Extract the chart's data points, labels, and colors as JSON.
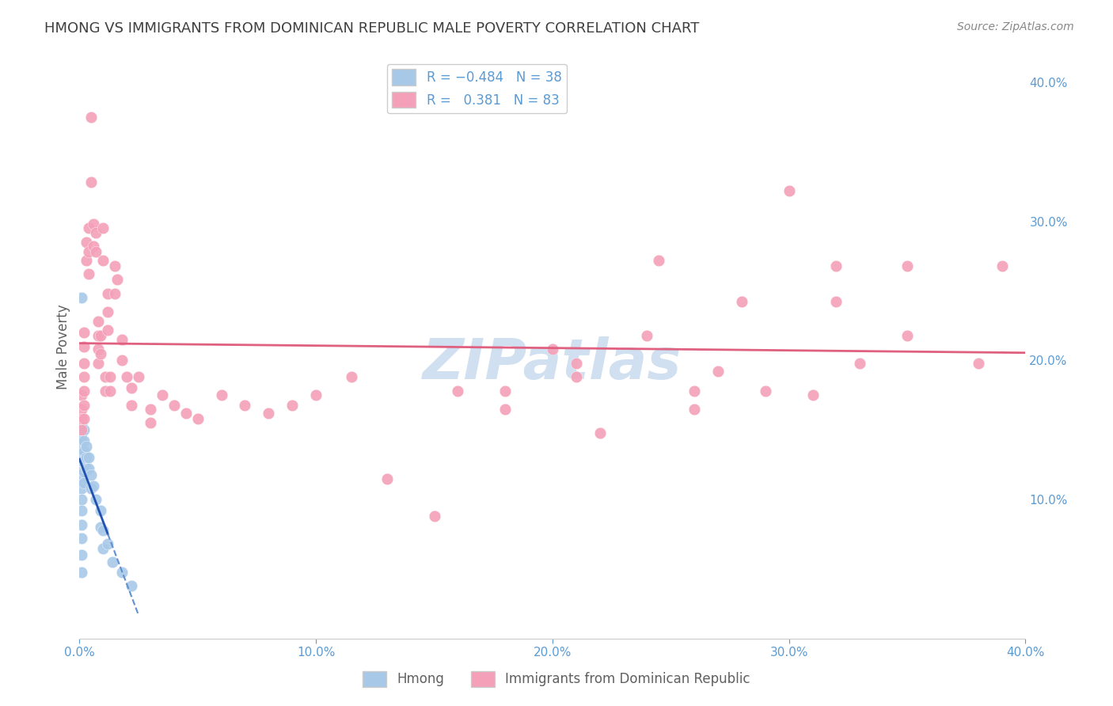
{
  "title": "HMONG VS IMMIGRANTS FROM DOMINICAN REPUBLIC MALE POVERTY CORRELATION CHART",
  "source": "Source: ZipAtlas.com",
  "ylabel": "Male Poverty",
  "xlim": [
    0.0,
    0.4
  ],
  "ylim": [
    0.0,
    0.42
  ],
  "x_ticks": [
    0.0,
    0.1,
    0.2,
    0.3,
    0.4
  ],
  "y_ticks_right": [
    0.1,
    0.2,
    0.3,
    0.4
  ],
  "x_tick_labels": [
    "0.0%",
    "10.0%",
    "20.0%",
    "30.0%",
    "40.0%"
  ],
  "y_tick_labels_right": [
    "10.0%",
    "20.0%",
    "30.0%",
    "40.0%"
  ],
  "legend_labels": [
    "Hmong",
    "Immigrants from Dominican Republic"
  ],
  "hmong_color": "#a8c8e8",
  "dr_color": "#f4a0b8",
  "hmong_R": -0.484,
  "hmong_N": 38,
  "dr_R": 0.381,
  "dr_N": 83,
  "hmong_line_color": "#2050b0",
  "hmong_line_dash_color": "#6090d0",
  "dr_line_color": "#e06080",
  "watermark": "ZIPatlas",
  "watermark_color": "#d0e0f0",
  "background_color": "#ffffff",
  "grid_color": "#d8d8d8",
  "title_color": "#404040",
  "axis_label_color": "#5b9bd5",
  "hmong_points": [
    [
      0.001,
      0.245
    ],
    [
      0.001,
      0.155
    ],
    [
      0.001,
      0.148
    ],
    [
      0.001,
      0.142
    ],
    [
      0.001,
      0.135
    ],
    [
      0.001,
      0.128
    ],
    [
      0.001,
      0.12
    ],
    [
      0.001,
      0.114
    ],
    [
      0.001,
      0.108
    ],
    [
      0.001,
      0.1
    ],
    [
      0.001,
      0.092
    ],
    [
      0.001,
      0.082
    ],
    [
      0.001,
      0.072
    ],
    [
      0.001,
      0.06
    ],
    [
      0.001,
      0.048
    ],
    [
      0.002,
      0.15
    ],
    [
      0.002,
      0.142
    ],
    [
      0.002,
      0.135
    ],
    [
      0.002,
      0.128
    ],
    [
      0.002,
      0.12
    ],
    [
      0.002,
      0.112
    ],
    [
      0.003,
      0.138
    ],
    [
      0.003,
      0.13
    ],
    [
      0.003,
      0.122
    ],
    [
      0.004,
      0.13
    ],
    [
      0.004,
      0.122
    ],
    [
      0.005,
      0.118
    ],
    [
      0.005,
      0.108
    ],
    [
      0.006,
      0.11
    ],
    [
      0.007,
      0.1
    ],
    [
      0.009,
      0.092
    ],
    [
      0.009,
      0.08
    ],
    [
      0.01,
      0.078
    ],
    [
      0.01,
      0.065
    ],
    [
      0.012,
      0.068
    ],
    [
      0.014,
      0.055
    ],
    [
      0.018,
      0.048
    ],
    [
      0.022,
      0.038
    ]
  ],
  "dr_points": [
    [
      0.001,
      0.175
    ],
    [
      0.001,
      0.165
    ],
    [
      0.001,
      0.158
    ],
    [
      0.001,
      0.15
    ],
    [
      0.002,
      0.22
    ],
    [
      0.002,
      0.21
    ],
    [
      0.002,
      0.198
    ],
    [
      0.002,
      0.188
    ],
    [
      0.002,
      0.178
    ],
    [
      0.002,
      0.168
    ],
    [
      0.002,
      0.158
    ],
    [
      0.003,
      0.285
    ],
    [
      0.003,
      0.272
    ],
    [
      0.004,
      0.295
    ],
    [
      0.004,
      0.278
    ],
    [
      0.004,
      0.262
    ],
    [
      0.005,
      0.375
    ],
    [
      0.005,
      0.328
    ],
    [
      0.006,
      0.298
    ],
    [
      0.006,
      0.282
    ],
    [
      0.007,
      0.292
    ],
    [
      0.007,
      0.278
    ],
    [
      0.008,
      0.228
    ],
    [
      0.008,
      0.218
    ],
    [
      0.008,
      0.208
    ],
    [
      0.008,
      0.198
    ],
    [
      0.009,
      0.218
    ],
    [
      0.009,
      0.205
    ],
    [
      0.01,
      0.295
    ],
    [
      0.01,
      0.272
    ],
    [
      0.011,
      0.188
    ],
    [
      0.011,
      0.178
    ],
    [
      0.012,
      0.248
    ],
    [
      0.012,
      0.235
    ],
    [
      0.012,
      0.222
    ],
    [
      0.013,
      0.188
    ],
    [
      0.013,
      0.178
    ],
    [
      0.015,
      0.268
    ],
    [
      0.015,
      0.248
    ],
    [
      0.016,
      0.258
    ],
    [
      0.018,
      0.215
    ],
    [
      0.018,
      0.2
    ],
    [
      0.02,
      0.188
    ],
    [
      0.022,
      0.18
    ],
    [
      0.022,
      0.168
    ],
    [
      0.025,
      0.188
    ],
    [
      0.03,
      0.165
    ],
    [
      0.03,
      0.155
    ],
    [
      0.035,
      0.175
    ],
    [
      0.04,
      0.168
    ],
    [
      0.045,
      0.162
    ],
    [
      0.05,
      0.158
    ],
    [
      0.06,
      0.175
    ],
    [
      0.07,
      0.168
    ],
    [
      0.08,
      0.162
    ],
    [
      0.09,
      0.168
    ],
    [
      0.1,
      0.175
    ],
    [
      0.115,
      0.188
    ],
    [
      0.13,
      0.115
    ],
    [
      0.15,
      0.088
    ],
    [
      0.16,
      0.178
    ],
    [
      0.18,
      0.178
    ],
    [
      0.18,
      0.165
    ],
    [
      0.2,
      0.208
    ],
    [
      0.21,
      0.198
    ],
    [
      0.21,
      0.188
    ],
    [
      0.22,
      0.148
    ],
    [
      0.24,
      0.218
    ],
    [
      0.245,
      0.272
    ],
    [
      0.26,
      0.178
    ],
    [
      0.26,
      0.165
    ],
    [
      0.27,
      0.192
    ],
    [
      0.28,
      0.242
    ],
    [
      0.29,
      0.178
    ],
    [
      0.3,
      0.322
    ],
    [
      0.31,
      0.175
    ],
    [
      0.32,
      0.268
    ],
    [
      0.32,
      0.242
    ],
    [
      0.33,
      0.198
    ],
    [
      0.35,
      0.268
    ],
    [
      0.35,
      0.218
    ],
    [
      0.38,
      0.198
    ],
    [
      0.39,
      0.268
    ]
  ]
}
